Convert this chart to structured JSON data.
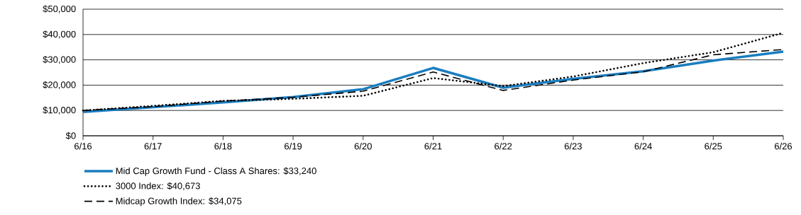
{
  "chart_data": {
    "type": "line",
    "categories": [
      "6/16",
      "6/17",
      "6/18",
      "6/19",
      "6/20",
      "6/21",
      "6/22",
      "6/23",
      "6/24",
      "6/25",
      "6/26"
    ],
    "series": [
      {
        "name": "Mid Cap Growth Fund - Class A Shares: $33,240",
        "color": "#1a7dc0",
        "line_style": "solid",
        "values": [
          9400,
          11300,
          13200,
          15300,
          18400,
          26800,
          19000,
          22500,
          25500,
          29700,
          33240
        ]
      },
      {
        "name": "3000 Index: $40,673",
        "color": "#000000",
        "line_style": "dotted",
        "values": [
          10000,
          11800,
          13800,
          14600,
          15800,
          22800,
          19600,
          23400,
          28700,
          33000,
          40673
        ]
      },
      {
        "name": "Midcap Growth Index: $34,075",
        "color": "#000000",
        "line_style": "dashed",
        "values": [
          10000,
          11500,
          13700,
          15200,
          17600,
          25200,
          17900,
          22000,
          25300,
          32000,
          34075
        ]
      }
    ],
    "ylim": [
      0,
      50000
    ],
    "yticks": [
      {
        "value": 0,
        "label": "$0"
      },
      {
        "value": 10000,
        "label": "$10,000"
      },
      {
        "value": 20000,
        "label": "$20,000"
      },
      {
        "value": 30000,
        "label": "$30,000"
      },
      {
        "value": 40000,
        "label": "$40,000"
      },
      {
        "value": 50000,
        "label": "$50,000"
      }
    ],
    "grid": "y",
    "legend": "bottom",
    "marker": "none"
  }
}
